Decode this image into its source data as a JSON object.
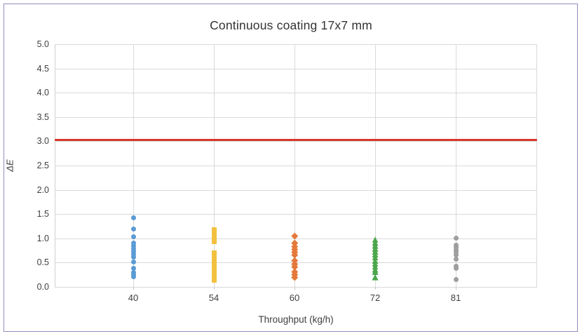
{
  "frame": {
    "border_color": "#8f8fbc",
    "background": "#ffffff"
  },
  "chart_data": {
    "type": "scatter",
    "title": "Continuous coating 17x7 mm",
    "xlabel": "Throughput (kg/h)",
    "ylabel": "ΔE",
    "ylim": [
      0.0,
      5.0
    ],
    "ytick_labels": [
      "5.0",
      "4.5",
      "4.0",
      "3.5",
      "3.0",
      "2.5",
      "2.0",
      "1.5",
      "1.0",
      "0.5",
      "0.0"
    ],
    "categories": [
      "40",
      "54",
      "60",
      "72",
      "81"
    ],
    "grid": true,
    "legend_position": "none",
    "gridline_color": "#dadada",
    "reference_line": {
      "value": 3.03,
      "color": "#d8382d",
      "name": "acceptance-limit-line"
    },
    "series": [
      {
        "name": "throughput-40",
        "category": "40",
        "marker": "circle",
        "color": "#5b9bd5",
        "values": [
          1.43,
          1.19,
          1.03,
          0.9,
          0.85,
          0.79,
          0.73,
          0.67,
          0.62,
          0.52,
          0.38,
          0.3,
          0.25,
          0.21
        ]
      },
      {
        "name": "throughput-54",
        "category": "54",
        "marker": "square",
        "color": "#f3c13f",
        "values": [
          1.18,
          1.1,
          1.02,
          0.93,
          0.7,
          0.62,
          0.55,
          0.47,
          0.4,
          0.33,
          0.26,
          0.19,
          0.14
        ]
      },
      {
        "name": "throughput-60",
        "category": "60",
        "marker": "diamond",
        "color": "#e4793a",
        "values": [
          1.05,
          0.9,
          0.84,
          0.78,
          0.72,
          0.66,
          0.55,
          0.48,
          0.42,
          0.31,
          0.25,
          0.2
        ]
      },
      {
        "name": "throughput-72",
        "category": "72",
        "marker": "triangle",
        "color": "#4ca64c",
        "values": [
          0.97,
          0.91,
          0.85,
          0.79,
          0.73,
          0.67,
          0.61,
          0.54,
          0.48,
          0.42,
          0.36,
          0.31,
          0.2
        ]
      },
      {
        "name": "throughput-81",
        "category": "81",
        "marker": "circle",
        "color": "#9e9e9e",
        "values": [
          1.0,
          0.86,
          0.81,
          0.76,
          0.71,
          0.66,
          0.57,
          0.43,
          0.39,
          0.15
        ]
      }
    ]
  }
}
